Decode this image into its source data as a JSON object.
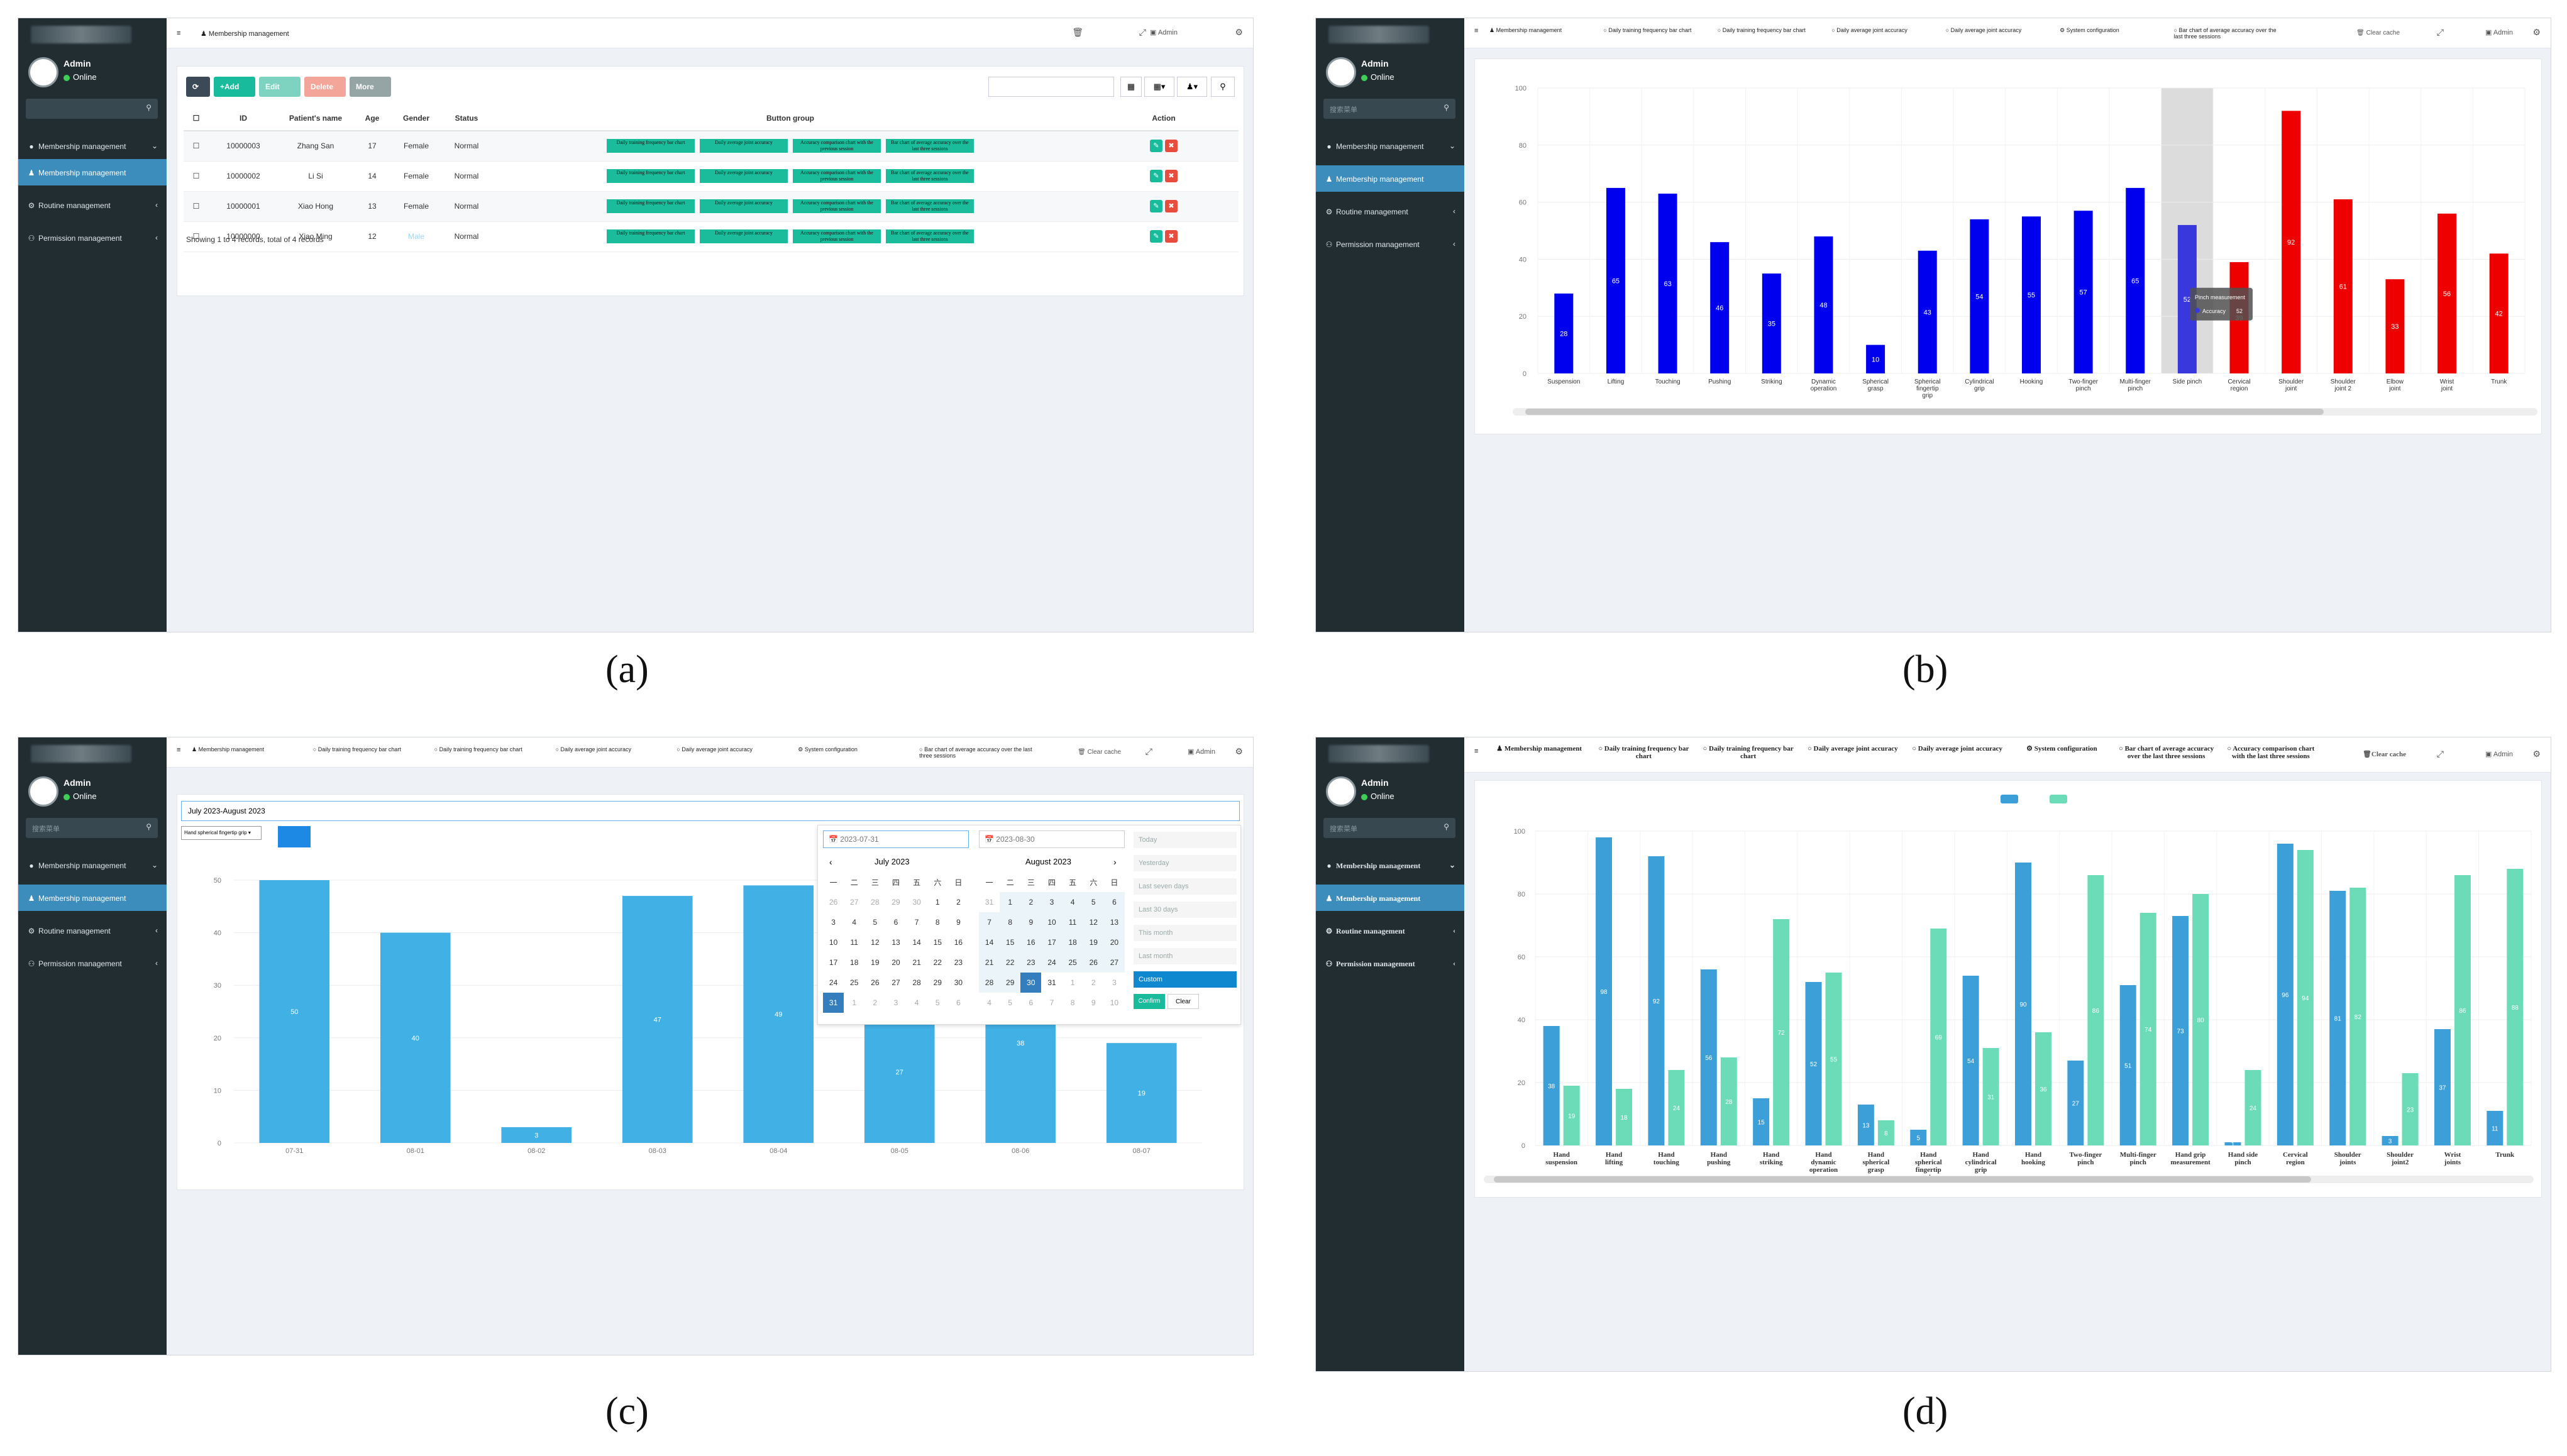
{
  "captions": [
    "(a)",
    "(b)",
    "(c)",
    "(d)"
  ],
  "sidebar": {
    "user_name": "Admin",
    "status": "Online",
    "search_placeholder": "搜索菜单",
    "items": [
      "Membership management",
      "Membership management",
      "Routine management",
      "Permission management"
    ]
  },
  "topbar": {
    "admin_label": "Admin",
    "clear_cache": "Clear cache"
  },
  "panel_a": {
    "breadcrumb": "Membership management",
    "toolbar": {
      "add": "+Add",
      "edit": "Edit",
      "delete": "Delete",
      "more": "More"
    },
    "columns": [
      "ID",
      "Patient's name",
      "Age",
      "Gender",
      "Status",
      "Button group",
      "Action"
    ],
    "rows": [
      {
        "id": "10000003",
        "name": "Zhang San",
        "age": "17",
        "gender": "Female",
        "status": "Normal"
      },
      {
        "id": "10000002",
        "name": "Li Si",
        "age": "14",
        "gender": "Female",
        "status": "Normal"
      },
      {
        "id": "10000001",
        "name": "Xiao Hong",
        "age": "13",
        "gender": "Female",
        "status": "Normal"
      },
      {
        "id": "10000000",
        "name": "Xiao Ming",
        "age": "12",
        "gender": "Male",
        "status": "Normal"
      }
    ],
    "button_group": [
      "Daily training frequency bar chart",
      "Daily average joint accuracy",
      "Accuracy comparison chart with the previous session",
      "Bar chart of average accuracy over the last three sessions"
    ],
    "footer": "Showing 1 to 4 records, total of 4 records"
  },
  "tabs_b": [
    "Membership management",
    "Daily training frequency bar chart",
    "Daily training frequency bar chart",
    "Daily average joint accuracy",
    "Daily average joint accuracy",
    "System configuration",
    "Bar chart of average accuracy over the last three sessions"
  ],
  "tabs_c": [
    "Membership management",
    "Daily training frequency bar chart",
    "Daily training frequency bar chart",
    "Daily average joint accuracy",
    "Daily average joint accuracy",
    "System configuration",
    "Bar chart of average accuracy over the last three sessions"
  ],
  "tabs_d": [
    "Membership management",
    "Daily training frequency bar chart",
    "Daily training frequency bar chart",
    "Daily average joint accuracy",
    "Daily average joint accuracy",
    "System configuration",
    "Bar chart of average accuracy over the last three sessions",
    "Accuracy comparison chart with the last three sessions"
  ],
  "panel_c": {
    "date_range": "July 2023-August 2023",
    "select": "Hand spherical fingertip grip",
    "start": "2023-07-31",
    "end": "2023-08-30",
    "month_left": "July 2023",
    "month_right": "August 2023",
    "weekdays": [
      "一",
      "二",
      "三",
      "四",
      "五",
      "六",
      "日"
    ],
    "left_days": [
      "26",
      "27",
      "28",
      "29",
      "30",
      "1",
      "2",
      "3",
      "4",
      "5",
      "6",
      "7",
      "8",
      "9",
      "10",
      "11",
      "12",
      "13",
      "14",
      "15",
      "16",
      "17",
      "18",
      "19",
      "20",
      "21",
      "22",
      "23",
      "24",
      "25",
      "26",
      "27",
      "28",
      "29",
      "30",
      "31",
      "1",
      "2",
      "3",
      "4",
      "5",
      "6"
    ],
    "right_days": [
      "31",
      "1",
      "2",
      "3",
      "4",
      "5",
      "6",
      "7",
      "8",
      "9",
      "10",
      "11",
      "12",
      "13",
      "14",
      "15",
      "16",
      "17",
      "18",
      "19",
      "20",
      "21",
      "22",
      "23",
      "24",
      "25",
      "26",
      "27",
      "28",
      "29",
      "30",
      "31",
      "1",
      "2",
      "3",
      "4",
      "5",
      "6",
      "7",
      "8",
      "9",
      "10"
    ],
    "ranges": [
      "Today",
      "Yesterday",
      "Last seven days",
      "Last 30 days",
      "This month",
      "Last month",
      "Custom"
    ],
    "confirm": "Confirm",
    "clear": "Clear"
  },
  "charts": {
    "b": {
      "type": "bar",
      "categories": [
        "Suspension",
        "Lifting",
        "Touching",
        "Pushing",
        "Striking",
        "Dynamic operation",
        "Spherical grasp",
        "Spherical fingertip grip",
        "Cylindrical grip",
        "Hooking",
        "Two-finger pinch",
        "Multi-finger pinch",
        "Side pinch",
        "Cervical region",
        "Shoulder joint",
        "Shoulder joint 2",
        "Elbow joint",
        "Wrist joint",
        "Trunk"
      ],
      "values": [
        28,
        65,
        63,
        46,
        35,
        48,
        10,
        43,
        54,
        55,
        57,
        65,
        52,
        39,
        92,
        61,
        33,
        56,
        42
      ],
      "colors": [
        "#0000ee",
        "#0000ee",
        "#0000ee",
        "#0000ee",
        "#0000ee",
        "#0000ee",
        "#0000ee",
        "#0000ee",
        "#0000ee",
        "#0000ee",
        "#0000ee",
        "#0000ee",
        "#3838dd",
        "#ee0000",
        "#ee0000",
        "#ee0000",
        "#ee0000",
        "#ee0000",
        "#ee0000"
      ],
      "ylim": [
        0,
        100
      ],
      "yticks": [
        0,
        20,
        40,
        60,
        80,
        100
      ],
      "highlight_index": 12,
      "tooltip": {
        "title": "Pinch measurement",
        "label": "Accuracy",
        "value": "52"
      }
    },
    "c": {
      "type": "bar",
      "categories": [
        "07-31",
        "08-01",
        "08-02",
        "08-03",
        "08-04",
        "08-05",
        "08-06",
        "08-07"
      ],
      "values": [
        50,
        40,
        3,
        47,
        49,
        27,
        38,
        19
      ],
      "color": "#41b0e4",
      "ylim": [
        0,
        50
      ],
      "yticks": [
        0,
        10,
        20,
        30,
        40,
        50
      ]
    },
    "d": {
      "type": "bar",
      "categories": [
        "Hand suspension",
        "Hand lifting",
        "Hand touching",
        "Hand pushing",
        "Hand striking",
        "Hand dynamic operation",
        "Hand spherical grasp",
        "Hand spherical fingertip grip",
        "Hand cylindrical grip",
        "Hand hooking",
        "Two-finger pinch",
        "Multi-finger pinch",
        "Hand grip measurement",
        "Hand side pinch",
        "Cervical region",
        "Shoulder joints",
        "Shoulder joint2",
        "Wrist joints",
        "Trunk"
      ],
      "series": [
        {
          "color": "#3d9fd8",
          "values": [
            38,
            98,
            92,
            56,
            15,
            52,
            13,
            5,
            54,
            90,
            27,
            51,
            73,
            1,
            96,
            81,
            3,
            37,
            11
          ]
        },
        {
          "color": "#6cdcb8",
          "values": [
            19,
            18,
            24,
            28,
            72,
            55,
            8,
            69,
            31,
            36,
            86,
            74,
            80,
            24,
            94,
            82,
            23,
            86,
            88
          ]
        }
      ],
      "ylim": [
        0,
        100
      ],
      "yticks": [
        0,
        20,
        40,
        60,
        80,
        100
      ]
    }
  }
}
